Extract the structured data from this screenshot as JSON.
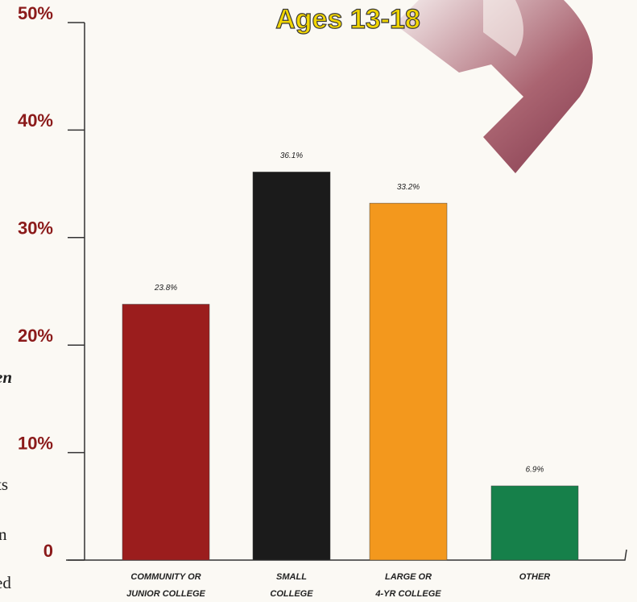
{
  "chart_data": {
    "type": "bar",
    "title": "Ages 13-18",
    "categories": [
      [
        "COMMUNITY OR",
        "JUNIOR COLLEGE"
      ],
      [
        "SMALL",
        "COLLEGE"
      ],
      [
        "LARGE OR",
        "4-YR COLLEGE"
      ],
      [
        "OTHER"
      ]
    ],
    "values": [
      23.8,
      36.1,
      33.2,
      6.9
    ],
    "value_labels": [
      "23.8%",
      "36.1%",
      "33.2%",
      "6.9%"
    ],
    "colors": [
      "#9b1d1d",
      "#1b1b1b",
      "#f3981d",
      "#16804a"
    ],
    "ylim": [
      0,
      50
    ],
    "yticks": [
      0,
      {
        "value": 10,
        "label": "10%"
      },
      {
        "value": 20,
        "label": "20%"
      },
      {
        "value": 30,
        "label": "30%"
      },
      {
        "value": 40,
        "label": "40%"
      },
      {
        "value": 50,
        "label": "50%"
      }
    ],
    "side_text": [
      "en",
      "ts",
      "n",
      "ed"
    ]
  }
}
